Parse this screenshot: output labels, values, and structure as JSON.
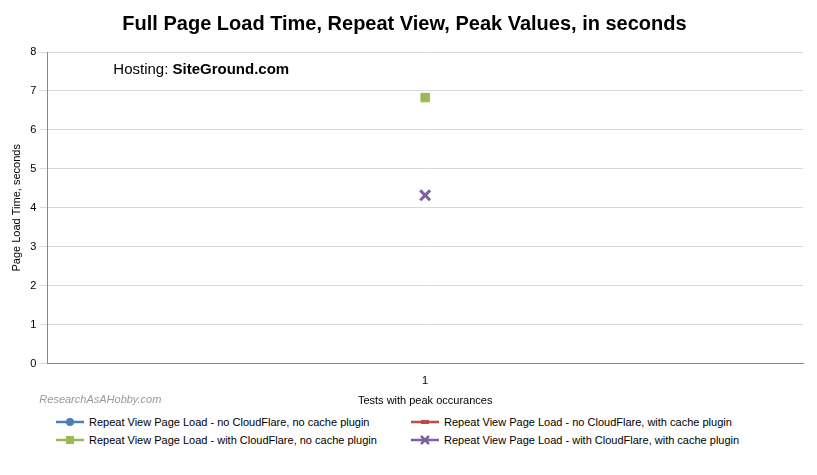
{
  "chart_data": {
    "type": "line",
    "title": "Full Page Load Time, Repeat View, Peak Values, in seconds",
    "x_label": "Tests with peak occurances",
    "y_label": "Page Load Time, seconds",
    "annotations": [
      "Hosting: SiteGround.com",
      "ResearchAsAHobby.com"
    ],
    "categories": [
      "1"
    ],
    "series": [
      {
        "name": "Repeat View Page Load - no CloudFlare, no cache plugin",
        "color": "#4a7ebb",
        "marker": "circle",
        "values": [
          null
        ]
      },
      {
        "name": "Repeat View Page Load - no CloudFlare, with cache plugin",
        "color": "#be4b48",
        "marker": "dash",
        "values": [
          null
        ]
      },
      {
        "name": "Repeat View Page Load - with CloudFlare, no cache plugin",
        "color": "#98b954",
        "marker": "square",
        "values": [
          6.83
        ]
      },
      {
        "name": "Repeat View Page Load - with CloudFlare, with cache plugin",
        "color": "#7d60a0",
        "marker": "x",
        "values": [
          4.32
        ]
      }
    ],
    "ylim": [
      0,
      8
    ],
    "yticks": [
      0,
      1,
      2,
      3,
      4,
      5,
      6,
      7,
      8
    ],
    "grid": true,
    "legend": "bottom"
  }
}
